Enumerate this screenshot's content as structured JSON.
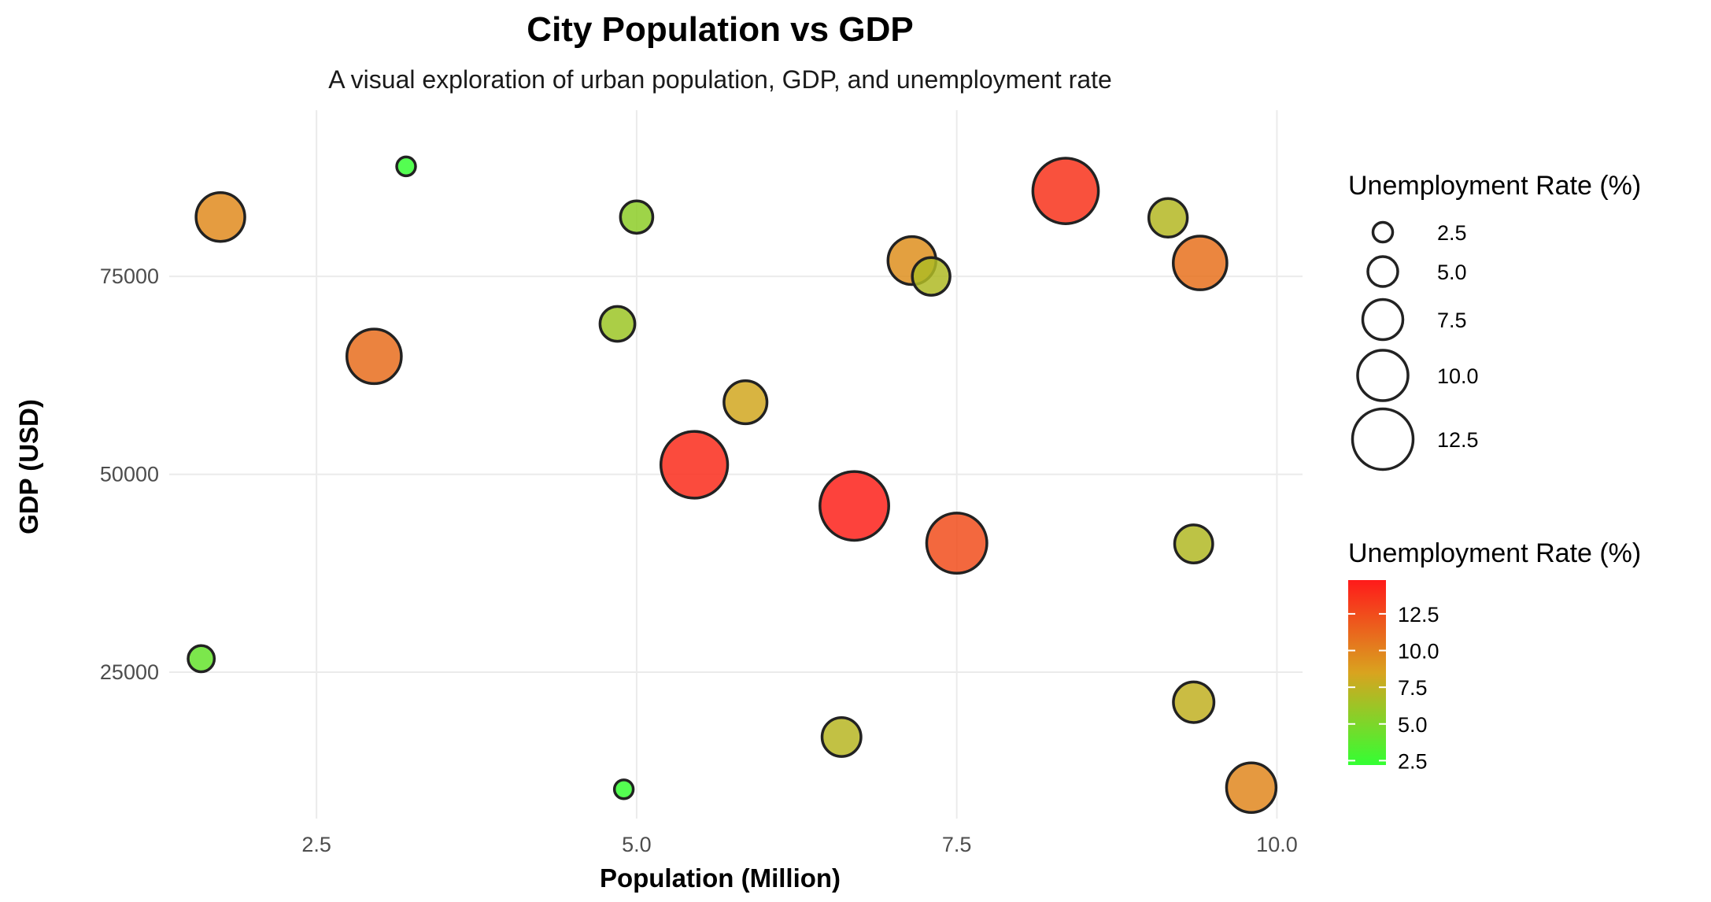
{
  "chart_data": {
    "type": "scatter",
    "title": "City Population vs GDP",
    "subtitle": "A visual exploration of urban population, GDP, and unemployment rate",
    "xlabel": "Population (Million)",
    "ylabel": "GDP (USD)",
    "xlim": [
      1.35,
      10.2
    ],
    "ylim": [
      6500,
      96000
    ],
    "x_ticks": [
      2.5,
      5.0,
      7.5,
      10.0
    ],
    "x_tick_labels": [
      "2.5",
      "5.0",
      "7.5",
      "10.0"
    ],
    "y_ticks": [
      25000,
      50000,
      75000
    ],
    "y_tick_labels": [
      "25000",
      "50000",
      "75000"
    ],
    "grid": true,
    "colors": {
      "low": "#33ff33",
      "mid": "#d9a31f",
      "high": "#ff1a1a"
    },
    "size_legend": {
      "title": "Unemployment Rate (%)",
      "values": [
        2.5,
        5.0,
        7.5,
        10.0,
        12.5
      ],
      "labels": [
        "2.5",
        "5.0",
        "7.5",
        "10.0",
        "12.5"
      ]
    },
    "color_legend": {
      "title": "Unemployment Rate (%)",
      "values": [
        12.5,
        10.0,
        7.5,
        5.0,
        2.5
      ],
      "labels": [
        "12.5",
        "10.0",
        "7.5",
        "5.0",
        "2.5"
      ],
      "range": [
        2.2,
        14.8
      ]
    },
    "points": [
      {
        "population": 1.75,
        "gdp": 82500,
        "unemployment": 9.6
      },
      {
        "population": 3.2,
        "gdp": 88900,
        "unemployment": 2.3
      },
      {
        "population": 5.0,
        "gdp": 82500,
        "unemployment": 5.6
      },
      {
        "population": 8.35,
        "gdp": 85800,
        "unemployment": 13.7
      },
      {
        "population": 9.15,
        "gdp": 82400,
        "unemployment": 7.1
      },
      {
        "population": 7.15,
        "gdp": 77000,
        "unemployment": 9.4
      },
      {
        "population": 7.3,
        "gdp": 75000,
        "unemployment": 6.9
      },
      {
        "population": 9.4,
        "gdp": 76700,
        "unemployment": 10.8
      },
      {
        "population": 4.85,
        "gdp": 69000,
        "unemployment": 6.2
      },
      {
        "population": 2.95,
        "gdp": 64900,
        "unemployment": 11.0
      },
      {
        "population": 5.85,
        "gdp": 59100,
        "unemployment": 8.2
      },
      {
        "population": 5.45,
        "gdp": 51200,
        "unemployment": 14.0
      },
      {
        "population": 6.7,
        "gdp": 46000,
        "unemployment": 14.5
      },
      {
        "population": 7.5,
        "gdp": 41300,
        "unemployment": 12.4
      },
      {
        "population": 9.35,
        "gdp": 41200,
        "unemployment": 7.0
      },
      {
        "population": 1.6,
        "gdp": 26700,
        "unemployment": 4.1
      },
      {
        "population": 9.35,
        "gdp": 21200,
        "unemployment": 7.6
      },
      {
        "population": 6.6,
        "gdp": 16800,
        "unemployment": 7.2
      },
      {
        "population": 4.9,
        "gdp": 10200,
        "unemployment": 2.3
      },
      {
        "population": 9.8,
        "gdp": 10400,
        "unemployment": 9.8
      }
    ]
  }
}
